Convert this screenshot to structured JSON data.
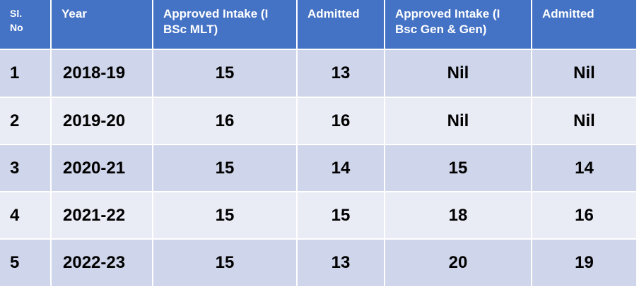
{
  "table": {
    "header": [
      "Sl. No",
      "Year",
      "Approved Intake (I BSc MLT)",
      "Admitted",
      "Approved Intake (I Bsc Gen & Gen)",
      "Admitted"
    ],
    "rows": [
      [
        "1",
        "2018-19",
        "15",
        "13",
        "Nil",
        "Nil"
      ],
      [
        "2",
        "2019-20",
        "16",
        "16",
        "Nil",
        "Nil"
      ],
      [
        "3",
        "2020-21",
        "15",
        "14",
        "15",
        "14"
      ],
      [
        "4",
        "2021-22",
        "15",
        "15",
        "18",
        "16"
      ],
      [
        "5",
        "2022-23",
        "15",
        "13",
        "20",
        "19"
      ]
    ]
  }
}
